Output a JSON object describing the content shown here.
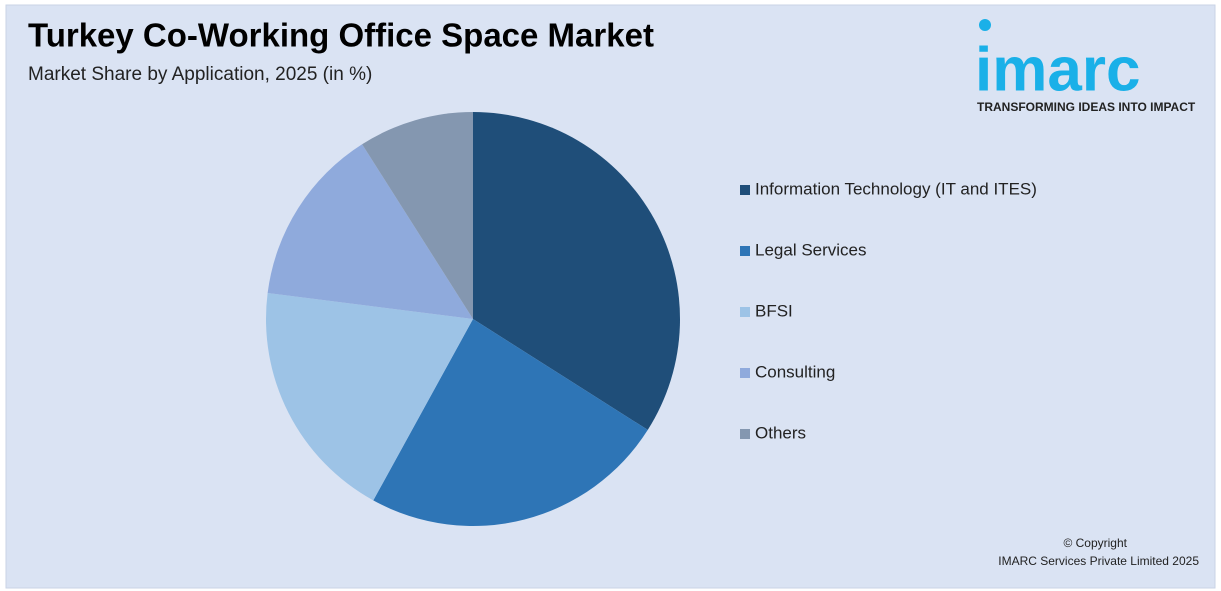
{
  "chart_data": {
    "type": "pie",
    "title": "Turkey Co-Working Office Space Market",
    "subtitle": "Market Share by Application, 2025 (in %)",
    "categories": [
      "Information Technology (IT and ITES)",
      "Legal Services",
      "BFSI",
      "Consulting",
      "Others"
    ],
    "values": [
      34,
      24,
      19,
      14,
      9
    ],
    "colors": [
      "#1f4e79",
      "#2e75b6",
      "#9dc3e6",
      "#8faadc",
      "#8497b0"
    ]
  },
  "logo": {
    "name": "imarc",
    "tagline": "TRANSFORMING IDEAS INTO IMPACT"
  },
  "copyright": [
    "© Copyright",
    "IMARC Services Private Limited 2025"
  ]
}
